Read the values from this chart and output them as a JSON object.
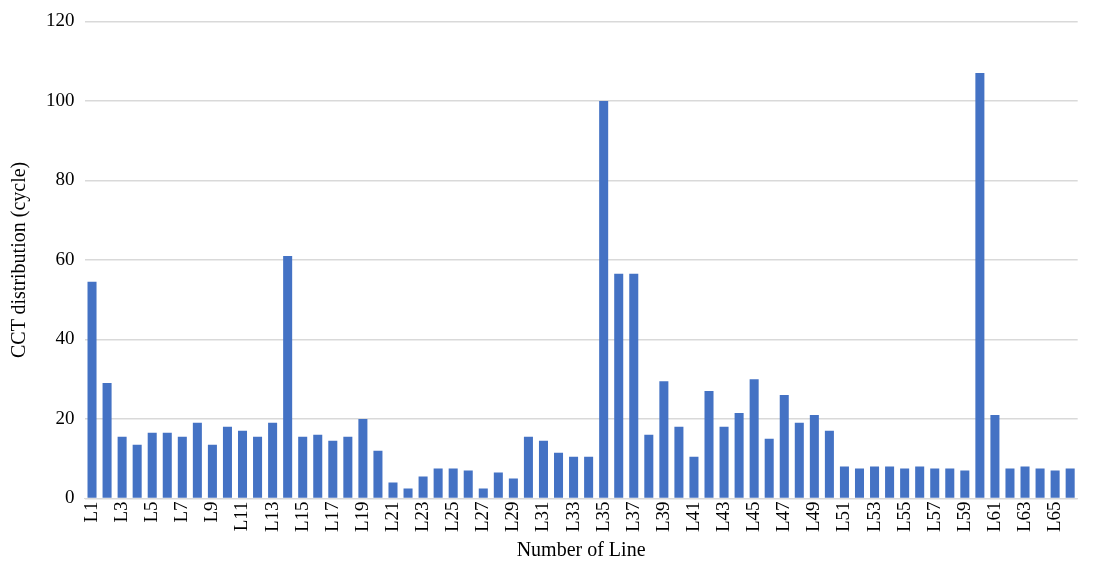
{
  "chart_data": {
    "type": "bar",
    "xlabel": "Number of Line",
    "ylabel": "CCT distribution (cycle)",
    "categories": [
      "L1",
      null,
      "L3",
      null,
      "L5",
      null,
      "L7",
      null,
      "L9",
      null,
      "L11",
      null,
      "L13",
      null,
      "L15",
      null,
      "L17",
      null,
      "L19",
      null,
      "L21",
      null,
      "L23",
      null,
      "L25",
      null,
      "L27",
      null,
      "L29",
      null,
      "L31",
      null,
      "L33",
      null,
      "L35",
      null,
      "L37",
      null,
      "L39",
      null,
      "L41",
      null,
      "L43",
      null,
      "L45",
      null,
      "L47",
      null,
      "L49",
      null,
      "L51",
      null,
      "L53",
      null,
      "L55",
      null,
      "L57",
      null,
      "L59",
      null,
      "L61",
      null,
      "L63",
      null,
      "L65",
      null
    ],
    "values": [
      54.5,
      29,
      15.5,
      13.5,
      16.5,
      16.5,
      15.5,
      19,
      13.5,
      18,
      17,
      15.5,
      19,
      61,
      15.5,
      16,
      14.5,
      15.5,
      20,
      12,
      4,
      2.5,
      5.5,
      7.5,
      7.5,
      7,
      2.5,
      6.5,
      5,
      15.5,
      14.5,
      11.5,
      10.5,
      10.5,
      100,
      56.5,
      56.5,
      16,
      29.5,
      18,
      10.5,
      27,
      18,
      21.5,
      30,
      15,
      26,
      19,
      21,
      17,
      8,
      7.5,
      8,
      8,
      7.5,
      8,
      7.5,
      7.5,
      7,
      107,
      21,
      7.5,
      8,
      7.5,
      7,
      7.5
    ],
    "color": "#4472c4",
    "ylim": [
      0,
      120
    ],
    "yticks": [
      0,
      20,
      40,
      60,
      80,
      100,
      120
    ],
    "grid": "y",
    "legend": false
  }
}
